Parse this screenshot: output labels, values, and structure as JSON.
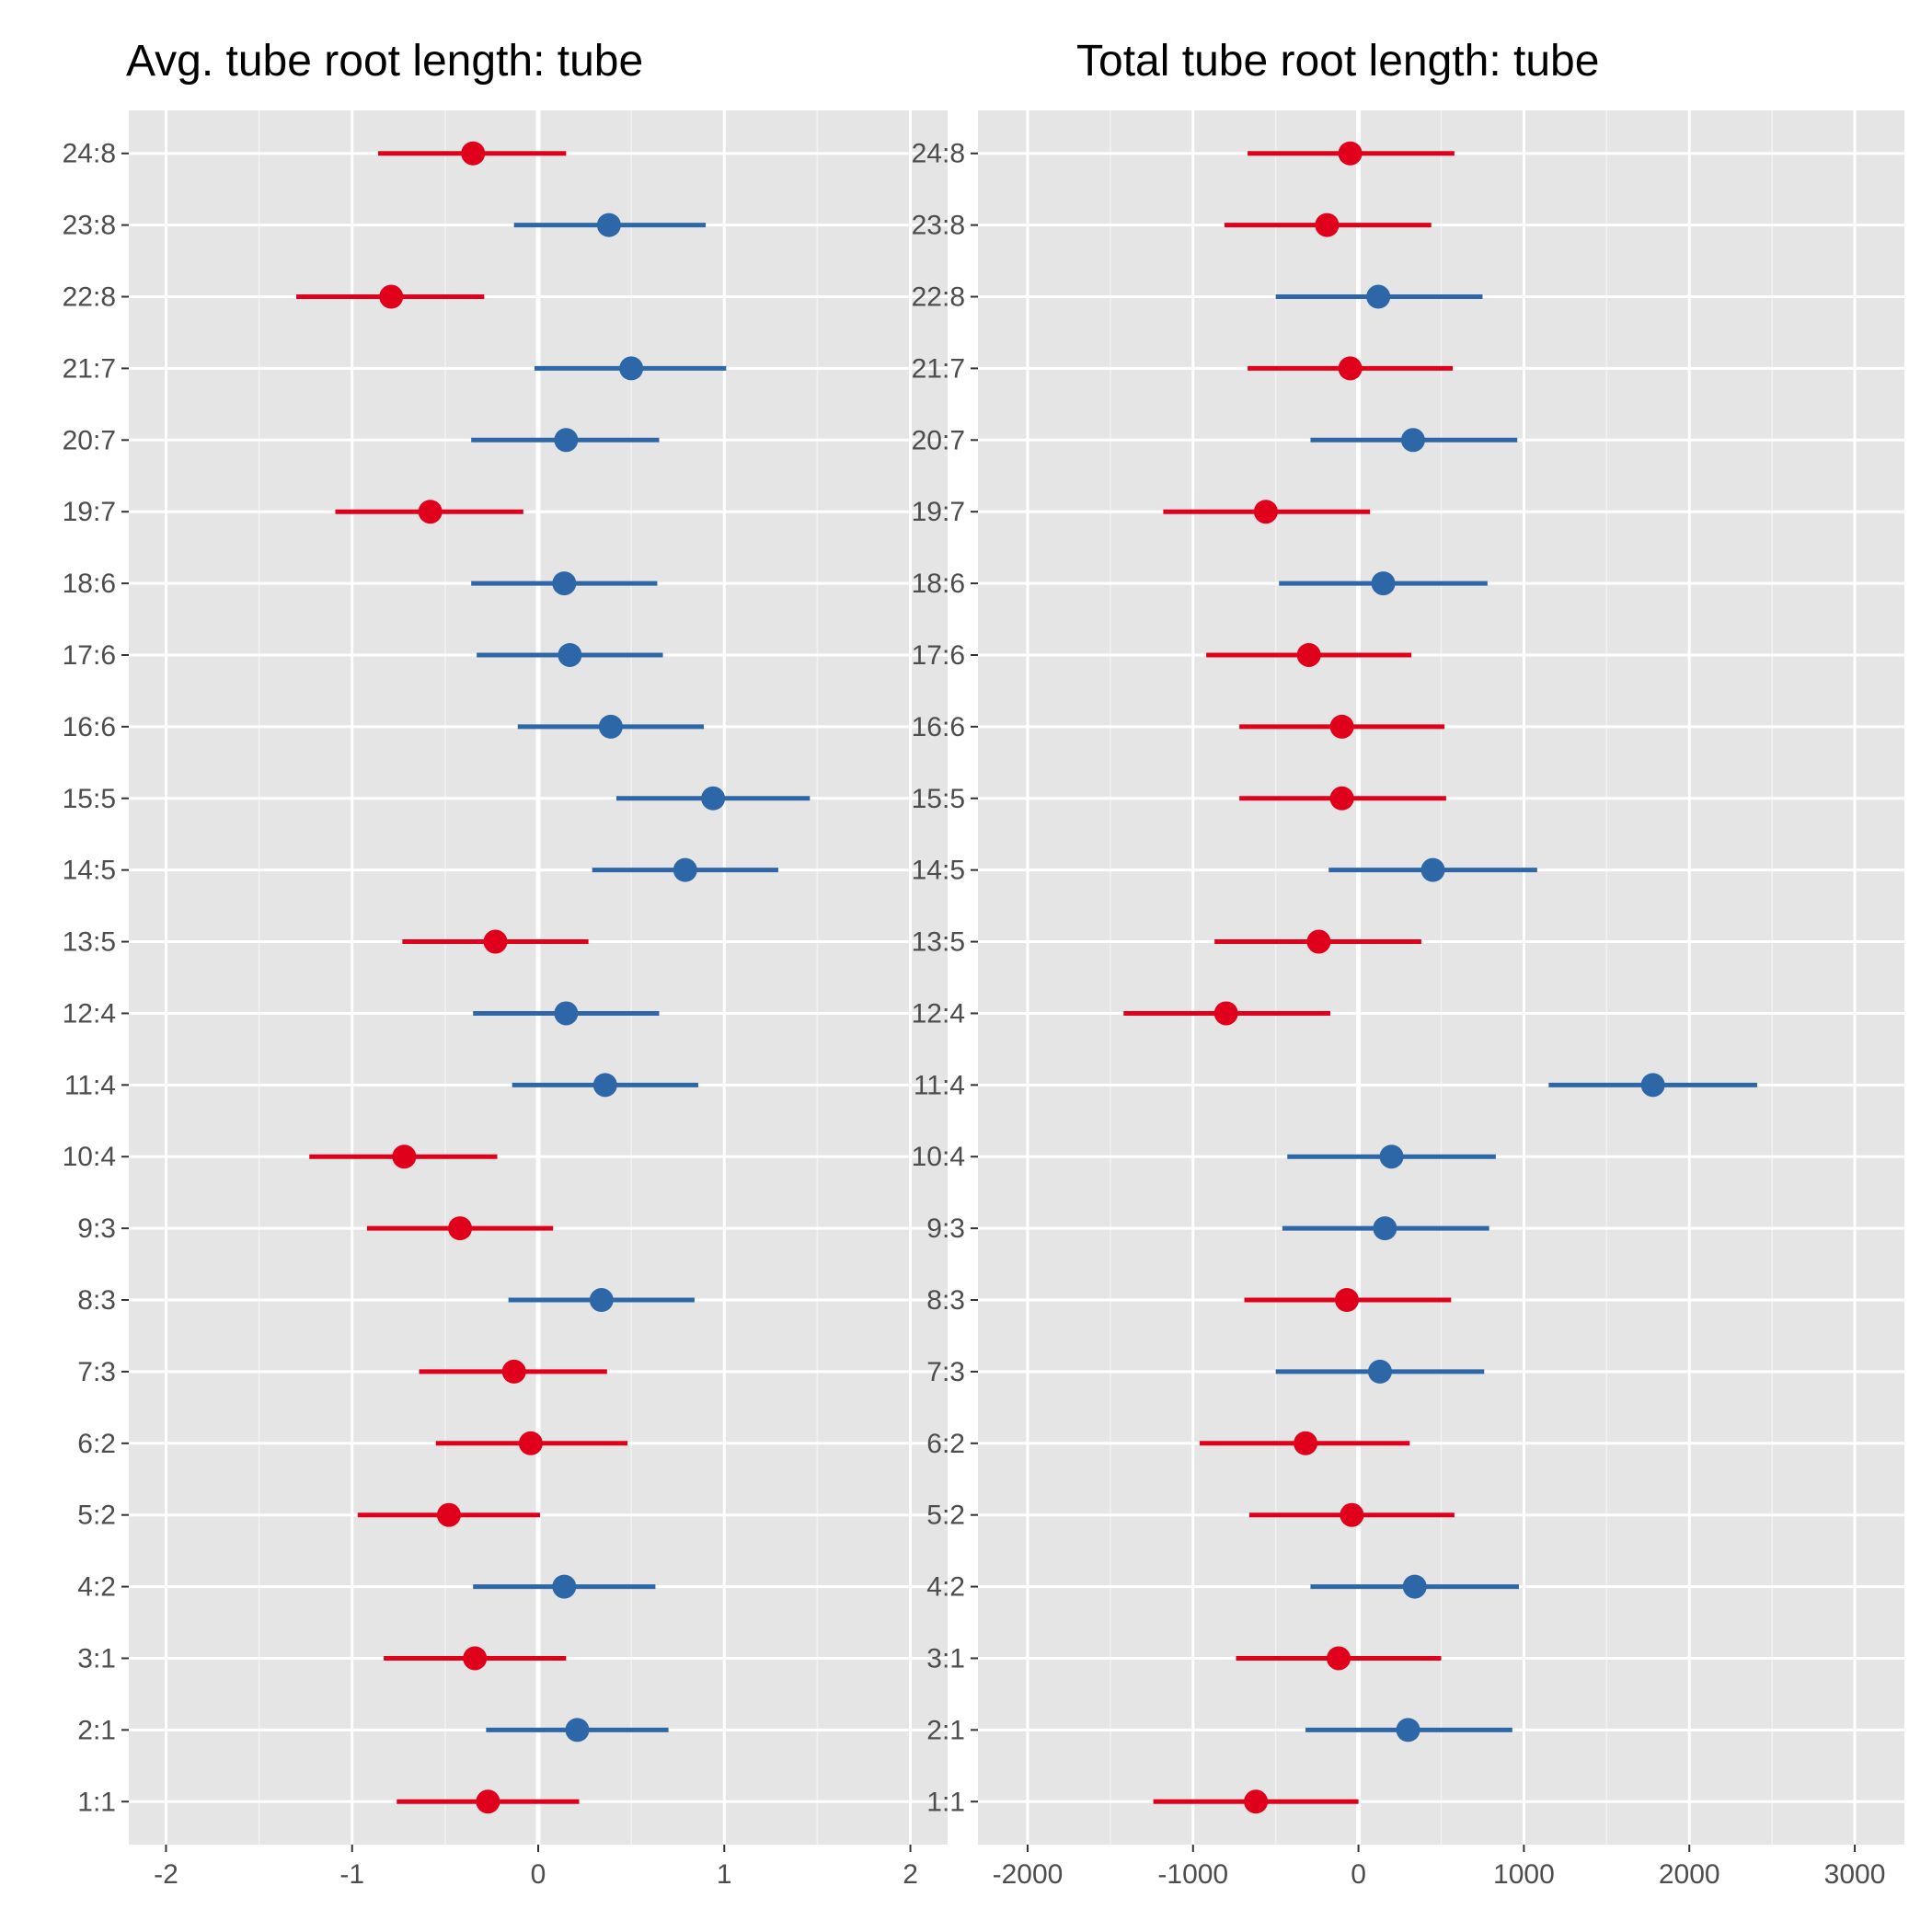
{
  "chart_data": [
    {
      "type": "dot-interval",
      "title": "Avg. tube root length: tube",
      "xlim": [
        -2.2,
        2.2
      ],
      "x_ticks": [
        -2,
        -1,
        0,
        1,
        2
      ],
      "x_tick_labels": [
        "-2",
        "-1",
        "0",
        "1",
        "2"
      ],
      "reference_line": 0,
      "grid": true,
      "categories": [
        "1:1",
        "2:1",
        "3:1",
        "4:2",
        "5:2",
        "6:2",
        "7:3",
        "8:3",
        "9:3",
        "10:4",
        "11:4",
        "12:4",
        "13:5",
        "14:5",
        "15:5",
        "16:6",
        "17:6",
        "18:6",
        "19:7",
        "20:7",
        "21:7",
        "22:8",
        "23:8",
        "24:8"
      ],
      "estimate": [
        -0.27,
        0.21,
        -0.34,
        0.14,
        -0.48,
        -0.04,
        -0.13,
        0.34,
        -0.42,
        -0.72,
        0.36,
        0.15,
        -0.23,
        0.79,
        0.94,
        0.39,
        0.17,
        0.14,
        -0.58,
        0.15,
        0.5,
        -0.79,
        0.38,
        -0.35
      ],
      "lower": [
        -0.76,
        -0.28,
        -0.83,
        -0.35,
        -0.97,
        -0.55,
        -0.64,
        -0.16,
        -0.92,
        -1.23,
        -0.14,
        -0.35,
        -0.73,
        0.29,
        0.42,
        -0.11,
        -0.33,
        -0.36,
        -1.09,
        -0.36,
        -0.02,
        -1.3,
        -0.13,
        -0.86
      ],
      "upper": [
        0.22,
        0.7,
        0.15,
        0.63,
        0.01,
        0.48,
        0.37,
        0.84,
        0.08,
        -0.22,
        0.86,
        0.65,
        0.27,
        1.29,
        1.46,
        0.89,
        0.67,
        0.64,
        -0.08,
        0.65,
        1.01,
        -0.29,
        0.9,
        0.15
      ],
      "color_key": [
        "negative",
        "positive",
        "negative",
        "positive",
        "negative",
        "negative",
        "negative",
        "positive",
        "negative",
        "negative",
        "positive",
        "positive",
        "negative",
        "positive",
        "positive",
        "positive",
        "positive",
        "positive",
        "negative",
        "positive",
        "positive",
        "negative",
        "positive",
        "negative"
      ]
    },
    {
      "type": "dot-interval",
      "title": "Total tube root length: tube",
      "xlim": [
        -2300,
        3300
      ],
      "x_ticks": [
        -2000,
        -1000,
        0,
        1000,
        2000,
        3000
      ],
      "x_tick_labels": [
        "-2000",
        "-1000",
        "0",
        "1000",
        "2000",
        "3000"
      ],
      "reference_line": 0,
      "grid": true,
      "categories": [
        "1:1",
        "2:1",
        "3:1",
        "4:2",
        "5:2",
        "6:2",
        "7:3",
        "8:3",
        "9:3",
        "10:4",
        "11:4",
        "12:4",
        "13:5",
        "14:5",
        "15:5",
        "16:6",
        "17:6",
        "18:6",
        "19:7",
        "20:7",
        "21:7",
        "22:8",
        "23:8",
        "24:8"
      ],
      "estimate": [
        -620,
        300,
        -120,
        340,
        -40,
        -320,
        130,
        -70,
        160,
        200,
        1780,
        -800,
        -240,
        450,
        -100,
        -100,
        -300,
        150,
        -560,
        330,
        -50,
        120,
        -190,
        -50
      ],
      "lower": [
        -1240,
        -320,
        -740,
        -290,
        -660,
        -960,
        -500,
        -690,
        -460,
        -430,
        1150,
        -1420,
        -870,
        -180,
        -720,
        -720,
        -920,
        -480,
        -1180,
        -290,
        -670,
        -500,
        -810,
        -670
      ],
      "upper": [
        0,
        930,
        500,
        970,
        580,
        310,
        760,
        560,
        790,
        830,
        2410,
        -170,
        380,
        1080,
        530,
        520,
        320,
        780,
        70,
        960,
        570,
        750,
        440,
        580
      ],
      "color_key": [
        "negative",
        "positive",
        "negative",
        "positive",
        "negative",
        "negative",
        "positive",
        "negative",
        "positive",
        "positive",
        "positive",
        "negative",
        "negative",
        "positive",
        "negative",
        "negative",
        "negative",
        "positive",
        "negative",
        "positive",
        "negative",
        "positive",
        "negative",
        "negative"
      ]
    }
  ],
  "colors": {
    "negative": "#e0001b",
    "positive": "#2e67a8",
    "panel_background": "#e5e5e5",
    "grid_major": "#ffffff",
    "grid_minor": "#f2f2f2",
    "tick_text": "#4d4d4d",
    "axis_tick": "#333333"
  }
}
